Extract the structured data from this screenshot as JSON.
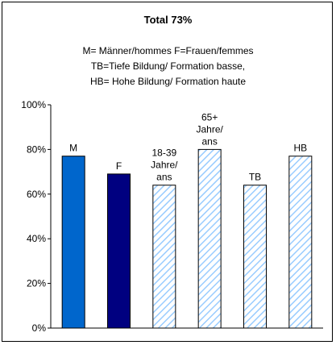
{
  "chart_data": {
    "type": "bar",
    "title": "Total 73%",
    "subtitle_lines": [
      "M= Männer/hommes F=Frauen/femmes",
      "TB=Tiefe Bildung/ Formation basse,",
      "HB= Hohe Bildung/ Formation haute"
    ],
    "categories": [
      [
        "M"
      ],
      [
        "F"
      ],
      [
        "18-39",
        "Jahre/",
        "ans"
      ],
      [
        "65+",
        "Jahre/",
        "ans"
      ],
      [
        "TB"
      ],
      [
        "HB"
      ]
    ],
    "values": [
      77,
      69,
      64,
      80,
      64,
      77
    ],
    "ylim": [
      0,
      100
    ],
    "yticks": [
      0,
      20,
      40,
      60,
      80,
      100
    ],
    "ytick_labels": [
      "0%",
      "20%",
      "40%",
      "60%",
      "80%",
      "100%"
    ],
    "xlabel": "",
    "ylabel": "",
    "grid": false,
    "legend": "none",
    "bar_fills": [
      "solid-blue",
      "solid-navy",
      "hatched-lightblue",
      "hatched-lightblue",
      "hatched-lightblue",
      "hatched-lightblue"
    ],
    "colors": {
      "M": "#0066cc",
      "F": "#000080",
      "hatch": "#99ccff"
    }
  }
}
